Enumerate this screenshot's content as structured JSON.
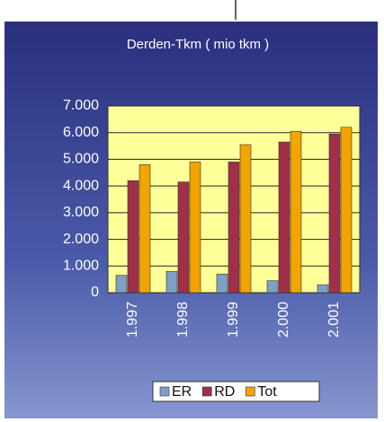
{
  "chart_data": {
    "type": "bar",
    "title": "Derden-Tkm ( mio tkm )",
    "categories": [
      "1.997",
      "1.998",
      "1.999",
      "2.000",
      "2.001"
    ],
    "series": [
      {
        "name": "ER",
        "color": "#7f9fc4",
        "values": [
          650,
          800,
          700,
          450,
          300
        ]
      },
      {
        "name": "RD",
        "color": "#a0304a",
        "values": [
          4200,
          4150,
          4900,
          5650,
          5950
        ]
      },
      {
        "name": "Tot",
        "color": "#f2a400",
        "values": [
          4800,
          4900,
          5550,
          6050,
          6200
        ]
      }
    ],
    "ylim": [
      0,
      7000
    ],
    "yticks": [
      0,
      {
        "value": 1000,
        "label": "1.000"
      },
      {
        "value": 2000,
        "label": "2.000"
      },
      {
        "value": 3000,
        "label": "3.000"
      },
      {
        "value": 4000,
        "label": "4.000"
      },
      {
        "value": 5000,
        "label": "5.000"
      },
      {
        "value": 6000,
        "label": "6.000"
      },
      {
        "value": 7000,
        "label": "7.000"
      }
    ],
    "grid": true,
    "legend": "bottom"
  }
}
